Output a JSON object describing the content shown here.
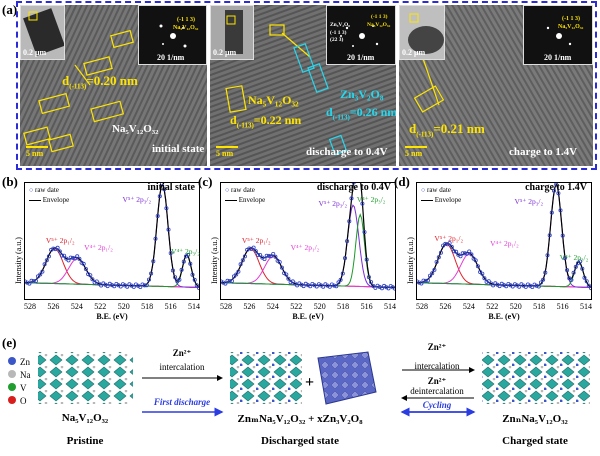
{
  "panel_a": {
    "label": "(a)",
    "images": [
      {
        "inset_left_scale": "0.2 μm",
        "fft_scale": "20 1/nm",
        "fft_labels": [
          "(-1 1 3)",
          "Na₅V₁₂O₃₂"
        ],
        "d_label": "d",
        "d_sub": "(-113)",
        "d_value": "=0.20 nm",
        "phase": "Na₅V₁₂O₃₂",
        "scale": "5 nm",
        "state": "initial state"
      },
      {
        "inset_left_scale": "0.2 μm",
        "fft_scale": "20 1/nm",
        "fft_labels": [
          "Zn₃V₂O₈",
          "(-1 1 3)",
          "(-1 1 3)",
          "(22 3)",
          "Na₅V₁₂O₃₂"
        ],
        "phase1": "Na₅V₁₂O₃₂",
        "d1_label": "d",
        "d1_sub": "(-113)",
        "d1_value": "=0.22 nm",
        "phase2": "Zn₃V₂O₈",
        "d2_label": "d",
        "d2_sub": "(-113)",
        "d2_value": "=0.26 nm",
        "scale": "5 nm",
        "state": "discharge to 0.4V"
      },
      {
        "inset_left_scale": "0.2 μm",
        "fft_scale": "20 1/nm",
        "fft_labels": [
          "(-1 1 3)",
          "Na₅V₁₂O₃₂"
        ],
        "d_label": "d",
        "d_sub": "(-113)",
        "d_value": "=0.21 nm",
        "scale": "5 nm",
        "state": "charge to 1.4V"
      }
    ]
  },
  "xps": [
    {
      "label": "(b)",
      "title": "initial state",
      "legend": [
        "raw date",
        "Envelope"
      ],
      "peaks": [
        "V⁵⁺ 2p₁/₂",
        "V⁴⁺ 2p₁/₂",
        "V⁵⁺ 2p₃/₂",
        "V⁴⁺ 2p₃/₂"
      ]
    },
    {
      "label": "(c)",
      "title": "discharge to 0.4V",
      "legend": [
        "raw date",
        "Envelope"
      ],
      "peaks": [
        "V⁵⁺ 2p₁/₂",
        "V⁴⁺ 2p₁/₂",
        "V⁵⁺ 2p₃/₂",
        "V⁴⁺ 2p₃/₂"
      ]
    },
    {
      "label": "(d)",
      "title": "charge to 1.4V",
      "legend": [
        "raw date",
        "Envelope"
      ],
      "peaks": [
        "V⁵⁺ 2p₁/₂",
        "V⁴⁺ 2p₁/₂",
        "V⁵⁺ 2p₃/₂",
        "V⁴⁺ 2p₃/₂"
      ]
    }
  ],
  "xps_axes": {
    "ylabel": "Intensity (a.u.)",
    "xlabel": "B.E. (eV)",
    "xticks": [
      "528",
      "526",
      "524",
      "522",
      "520",
      "518",
      "516",
      "514"
    ]
  },
  "panel_e": {
    "label": "(e)",
    "atoms": [
      {
        "symbol": "Zn",
        "color": "#3a56c9"
      },
      {
        "symbol": "Na",
        "color": "#b8b8b8"
      },
      {
        "symbol": "V",
        "color": "#1f9d2e"
      },
      {
        "symbol": "O",
        "color": "#d91e1e"
      }
    ],
    "arrow1_top": "Zn²⁺",
    "arrow1_bottom": "intercalation",
    "arrow1_caption": "First discharge",
    "arrow2_top": "Zn²⁺",
    "arrow2_mid": "intercalation",
    "arrow2_zn": "Zn²⁺",
    "arrow2_bottom": "deintercalation",
    "arrow2_caption": "Cycling",
    "formula_left": "Na₅V₁₂O₃₂",
    "formula_mid": "ZnₘNa₅V₁₂O₃₂ + xZn₃V₂O₈",
    "formula_right": "ZnₙNa₅V₁₂O₃₂",
    "state_left": "Pristine",
    "state_mid": "Discharged state",
    "state_right": "Charged state",
    "plus": "+"
  },
  "colors": {
    "dash": "#2b2bd8",
    "raw": "#2c3fc6",
    "envelope": "#000000",
    "v5_p12": "#e0202a",
    "v4_p12": "#e23ad6",
    "v5_p32": "#7a2bd6",
    "v4_p32": "#1a9a28",
    "arrow_blue": "#2b3ce0"
  }
}
